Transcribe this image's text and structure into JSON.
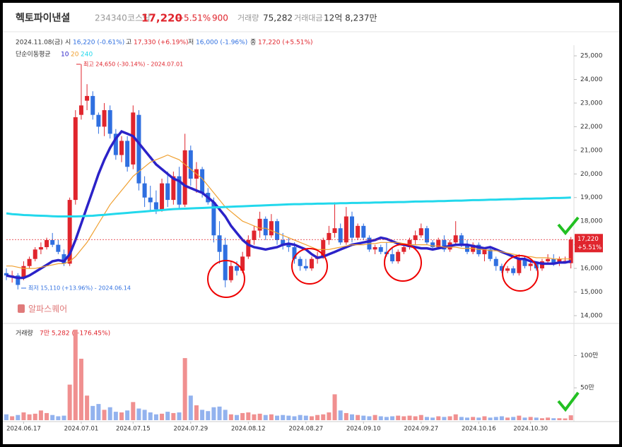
{
  "header": {
    "name": "헥토파이낸셜",
    "code": "234340",
    "market": "코스닥",
    "price": "17,220",
    "change": "+5.51%",
    "diff": "900",
    "volume_label": "거래량",
    "volume": "75,282",
    "amount_label": "거래대금",
    "amount": "12억 8,237만"
  },
  "info": {
    "date": "2024.11.08(금)",
    "open_label": "시",
    "open": "16,220 (-0.61%)",
    "high_label": "고",
    "high": "17,330 (+6.19%)",
    "low_label": "저",
    "low": "16,000 (-1.96%)",
    "close_label": "종",
    "close": "17,220 (+5.51%)"
  },
  "chart_data": {
    "type": "candlestick",
    "legend_title": "단순이동평균",
    "up_color": "#e0252d",
    "down_color": "#2f6fe0",
    "ohlc": [
      [
        15800,
        16000,
        15500,
        15700
      ],
      [
        15700,
        15900,
        15400,
        15700
      ],
      [
        15700,
        15800,
        15110,
        15300
      ],
      [
        15600,
        16300,
        15500,
        16100
      ],
      [
        16100,
        16500,
        16000,
        16400
      ],
      [
        16400,
        16900,
        16300,
        16800
      ],
      [
        16800,
        17100,
        16600,
        16900
      ],
      [
        16900,
        17300,
        16800,
        17200
      ],
      [
        17200,
        17500,
        16900,
        17000
      ],
      [
        17000,
        17200,
        16600,
        16700
      ],
      [
        16600,
        16800,
        16100,
        16200
      ],
      [
        16200,
        19000,
        16100,
        18900
      ],
      [
        18900,
        22700,
        18700,
        22400
      ],
      [
        22500,
        24650,
        22300,
        22900
      ],
      [
        23100,
        23800,
        22700,
        23300
      ],
      [
        23300,
        23500,
        22300,
        22500
      ],
      [
        22500,
        22600,
        21700,
        22000
      ],
      [
        22000,
        23000,
        21600,
        22700
      ],
      [
        22700,
        22900,
        21500,
        21700
      ],
      [
        21700,
        21900,
        20600,
        20800
      ],
      [
        20800,
        21600,
        20500,
        21400
      ],
      [
        21400,
        21600,
        20100,
        20300
      ],
      [
        20400,
        22900,
        20200,
        22600
      ],
      [
        22500,
        22700,
        19300,
        19600
      ],
      [
        19600,
        19900,
        18600,
        19000
      ],
      [
        19000,
        19500,
        18400,
        18800
      ],
      [
        18800,
        19300,
        18300,
        18500
      ],
      [
        18500,
        19800,
        18400,
        19600
      ],
      [
        19600,
        20100,
        18600,
        18900
      ],
      [
        18900,
        20100,
        18700,
        19900
      ],
      [
        19900,
        20300,
        18500,
        18700
      ],
      [
        18700,
        21700,
        18600,
        21000
      ],
      [
        21000,
        21200,
        19500,
        19800
      ],
      [
        19800,
        20500,
        19200,
        20200
      ],
      [
        20200,
        20300,
        19000,
        19200
      ],
      [
        19200,
        19400,
        18700,
        18800
      ],
      [
        18800,
        19000,
        17100,
        17400
      ],
      [
        17400,
        18000,
        16200,
        16700
      ],
      [
        17000,
        17300,
        15200,
        15500
      ],
      [
        15500,
        16300,
        15400,
        16100
      ],
      [
        16100,
        16300,
        15700,
        15900
      ],
      [
        15900,
        16700,
        15800,
        16500
      ],
      [
        16500,
        17400,
        16400,
        17200
      ],
      [
        17200,
        17800,
        17000,
        17600
      ],
      [
        17600,
        18400,
        17300,
        18100
      ],
      [
        18100,
        18200,
        17200,
        17400
      ],
      [
        17400,
        18300,
        17300,
        18000
      ],
      [
        18000,
        18100,
        17000,
        17200
      ],
      [
        17200,
        17500,
        16800,
        17000
      ],
      [
        17000,
        17300,
        16700,
        16900
      ],
      [
        16900,
        17100,
        16200,
        16400
      ],
      [
        16400,
        16500,
        15900,
        16100
      ],
      [
        16100,
        16400,
        15900,
        16000
      ],
      [
        16000,
        16500,
        15900,
        16400
      ],
      [
        16400,
        16700,
        16200,
        16500
      ],
      [
        16500,
        17300,
        16400,
        17200
      ],
      [
        17200,
        17800,
        17000,
        17500
      ],
      [
        17500,
        18800,
        17300,
        17700
      ],
      [
        17700,
        17900,
        17000,
        17100
      ],
      [
        17100,
        18600,
        17000,
        18200
      ],
      [
        18200,
        18400,
        17100,
        17300
      ],
      [
        17300,
        17900,
        17200,
        17800
      ],
      [
        17800,
        17900,
        17200,
        17300
      ],
      [
        17300,
        17400,
        16700,
        16800
      ],
      [
        16800,
        17000,
        16600,
        16900
      ],
      [
        16900,
        17000,
        16600,
        16700
      ],
      [
        16700,
        17100,
        16500,
        16600
      ],
      [
        16600,
        16900,
        16200,
        16300
      ],
      [
        16300,
        16800,
        16200,
        16700
      ],
      [
        16700,
        17000,
        16600,
        16900
      ],
      [
        16900,
        17300,
        16800,
        17200
      ],
      [
        17200,
        17600,
        17000,
        17400
      ],
      [
        17400,
        17900,
        17300,
        17700
      ],
      [
        17700,
        17800,
        17000,
        17100
      ],
      [
        17100,
        17200,
        16800,
        16900
      ],
      [
        16900,
        17300,
        16800,
        17200
      ],
      [
        17200,
        17400,
        16700,
        16800
      ],
      [
        16800,
        17200,
        16700,
        17100
      ],
      [
        17100,
        18000,
        17000,
        17400
      ],
      [
        17400,
        17500,
        16900,
        17000
      ],
      [
        17000,
        17200,
        16600,
        16700
      ],
      [
        16700,
        17100,
        16600,
        17000
      ],
      [
        17000,
        17100,
        16500,
        16600
      ],
      [
        16600,
        16900,
        16300,
        16800
      ],
      [
        16800,
        16900,
        16300,
        16400
      ],
      [
        16400,
        16500,
        15900,
        16100
      ],
      [
        16100,
        16200,
        15800,
        15900
      ],
      [
        15900,
        16100,
        15800,
        16000
      ],
      [
        16000,
        16100,
        15700,
        15800
      ],
      [
        15800,
        16600,
        15700,
        16400
      ],
      [
        16400,
        16500,
        16000,
        16100
      ],
      [
        16100,
        16300,
        15900,
        16200
      ],
      [
        16200,
        16300,
        15900,
        16000
      ],
      [
        16000,
        16400,
        15900,
        16300
      ],
      [
        16300,
        16600,
        16200,
        16400
      ],
      [
        16400,
        16600,
        16100,
        16200
      ],
      [
        16200,
        16500,
        16100,
        16400
      ],
      [
        16320,
        16500,
        16200,
        16320
      ],
      [
        16220,
        17330,
        16000,
        17220
      ]
    ],
    "series": [
      {
        "name": "10",
        "color": "#2b22c8",
        "values": [
          15700,
          15650,
          15600,
          15600,
          15700,
          15850,
          16000,
          16150,
          16300,
          16350,
          16300,
          16600,
          17200,
          17900,
          18600,
          19300,
          20000,
          20600,
          21100,
          21500,
          21800,
          21700,
          21600,
          21300,
          21000,
          20700,
          20400,
          20200,
          20000,
          19800,
          19700,
          19500,
          19400,
          19300,
          19200,
          19000,
          18800,
          18500,
          18200,
          17800,
          17500,
          17200,
          17000,
          16900,
          16850,
          16800,
          16850,
          16900,
          17000,
          17050,
          17000,
          16900,
          16800,
          16600,
          16450,
          16500,
          16600,
          16700,
          16800,
          16900,
          17000,
          17050,
          17100,
          17150,
          17200,
          17300,
          17250,
          17150,
          17050,
          17000,
          16950,
          16900,
          16850,
          16850,
          16800,
          16850,
          16900,
          16950,
          17000,
          17000,
          17000,
          16950,
          16900,
          16850,
          16900,
          16800,
          16700,
          16600,
          16500,
          16400,
          16400,
          16300,
          16250,
          16200,
          16200,
          16200,
          16250,
          16250,
          16300
        ]
      },
      {
        "name": "20",
        "color": "#f0a030",
        "values": [
          16100,
          16100,
          16050,
          16000,
          16000,
          16000,
          16050,
          16100,
          16150,
          16200,
          16200,
          16300,
          16500,
          16800,
          17100,
          17500,
          17900,
          18300,
          18700,
          19000,
          19300,
          19600,
          19900,
          20100,
          20300,
          20500,
          20600,
          20700,
          20800,
          20700,
          20600,
          20400,
          20200,
          20000,
          19800,
          19500,
          19200,
          18900,
          18600,
          18400,
          18200,
          18000,
          17900,
          17800,
          17700,
          17700,
          17600,
          17500,
          17400,
          17300,
          17200,
          17100,
          17000,
          16900,
          16800,
          16800,
          16800,
          16850,
          16900,
          16950,
          17000,
          17000,
          17000,
          17050,
          17050,
          17100,
          17100,
          17100,
          17100,
          17050,
          17000,
          17000,
          17000,
          17000,
          16950,
          16950,
          16900,
          16900,
          16900,
          16850,
          16850,
          16850,
          16800,
          16800,
          16750,
          16750,
          16700,
          16650,
          16600,
          16550,
          16500,
          16500,
          16450,
          16450,
          16450,
          16400,
          16400,
          16400,
          16400
        ]
      },
      {
        "name": "240",
        "color": "#22d8ec",
        "values": [
          18330,
          18300,
          18280,
          18260,
          18250,
          18240,
          18230,
          18220,
          18210,
          18200,
          18200,
          18200,
          18200,
          18210,
          18220,
          18230,
          18250,
          18270,
          18290,
          18310,
          18330,
          18350,
          18370,
          18390,
          18410,
          18430,
          18450,
          18470,
          18490,
          18510,
          18520,
          18530,
          18540,
          18550,
          18560,
          18570,
          18580,
          18590,
          18600,
          18610,
          18620,
          18630,
          18640,
          18650,
          18660,
          18670,
          18680,
          18690,
          18700,
          18710,
          18720,
          18720,
          18730,
          18730,
          18740,
          18740,
          18750,
          18750,
          18760,
          18760,
          18770,
          18770,
          18780,
          18780,
          18790,
          18790,
          18800,
          18800,
          18810,
          18810,
          18820,
          18830,
          18830,
          18840,
          18840,
          18850,
          18850,
          18860,
          18870,
          18870,
          18880,
          18890,
          18890,
          18900,
          18910,
          18910,
          18920,
          18930,
          18930,
          18940,
          18950,
          18950,
          18960,
          18960,
          18970,
          18980,
          18980,
          18990,
          19000
        ]
      }
    ],
    "ylim": [
      13760,
      25510
    ],
    "yticks": [
      {
        "value": 25000,
        "label": "25,000"
      },
      {
        "value": 24000,
        "label": "24,000"
      },
      {
        "value": 23000,
        "label": "23,000"
      },
      {
        "value": 22000,
        "label": "22,000"
      },
      {
        "value": 21000,
        "label": "21,000"
      },
      {
        "value": 20000,
        "label": "20,000"
      },
      {
        "value": 19000,
        "label": "19,000"
      },
      {
        "value": 18000,
        "label": "18,000"
      },
      {
        "value": 17000,
        "label": "17,000"
      },
      {
        "value": 16000,
        "label": "16,000"
      },
      {
        "value": 15000,
        "label": "15,000"
      },
      {
        "value": 14000,
        "label": "14,000"
      }
    ],
    "xticks": [
      {
        "value": 3,
        "label": "2024.06.17"
      },
      {
        "value": 13,
        "label": "2024.07.01"
      },
      {
        "value": 22,
        "label": "2024.07.15"
      },
      {
        "value": 32,
        "label": "2024.07.29"
      },
      {
        "value": 42,
        "label": "2024.08.12"
      },
      {
        "value": 52,
        "label": "2024.08.27"
      },
      {
        "value": 62,
        "label": "2024.09.10"
      },
      {
        "value": 72,
        "label": "2024.09.27"
      },
      {
        "value": 82,
        "label": "2024.10.16"
      },
      {
        "value": 91,
        "label": "2024.10.30"
      }
    ],
    "high_annotation": "최고 24,650 (-30.14%) - 2024.07.01",
    "low_annotation": "최저 15,110 (+13.96%) - 2024.06.14",
    "last_price_label": "17,220",
    "last_change_label": "+5.51%",
    "watermark": "알파스퀘어",
    "volume": {
      "label": "거래량",
      "summary": "7만 5,282 (+176.45%)",
      "up_color": "#f09090",
      "down_color": "#92b2ee",
      "values": [
        90000,
        60000,
        80000,
        120000,
        90000,
        100000,
        150000,
        110000,
        80000,
        60000,
        70000,
        550000,
        1400000,
        950000,
        380000,
        220000,
        250000,
        160000,
        200000,
        130000,
        120000,
        150000,
        280000,
        180000,
        160000,
        120000,
        90000,
        100000,
        130000,
        110000,
        120000,
        960000,
        380000,
        230000,
        160000,
        140000,
        200000,
        210000,
        160000,
        90000,
        80000,
        110000,
        120000,
        90000,
        100000,
        80000,
        90000,
        70000,
        80000,
        70000,
        60000,
        80000,
        70000,
        60000,
        80000,
        90000,
        120000,
        400000,
        150000,
        110000,
        90000,
        80000,
        70000,
        60000,
        80000,
        60000,
        50000,
        60000,
        70000,
        60000,
        70000,
        60000,
        80000,
        50000,
        40000,
        60000,
        50000,
        60000,
        90000,
        50000,
        40000,
        50000,
        40000,
        60000,
        40000,
        50000,
        60000,
        40000,
        50000,
        70000,
        40000,
        50000,
        40000,
        30000,
        40000,
        30000,
        30000,
        27000,
        75282
      ],
      "ylim": [
        0,
        1420000
      ],
      "yticks": [
        {
          "value": 500000,
          "label": "50만"
        },
        {
          "value": 1000000,
          "label": "100만"
        }
      ]
    }
  }
}
